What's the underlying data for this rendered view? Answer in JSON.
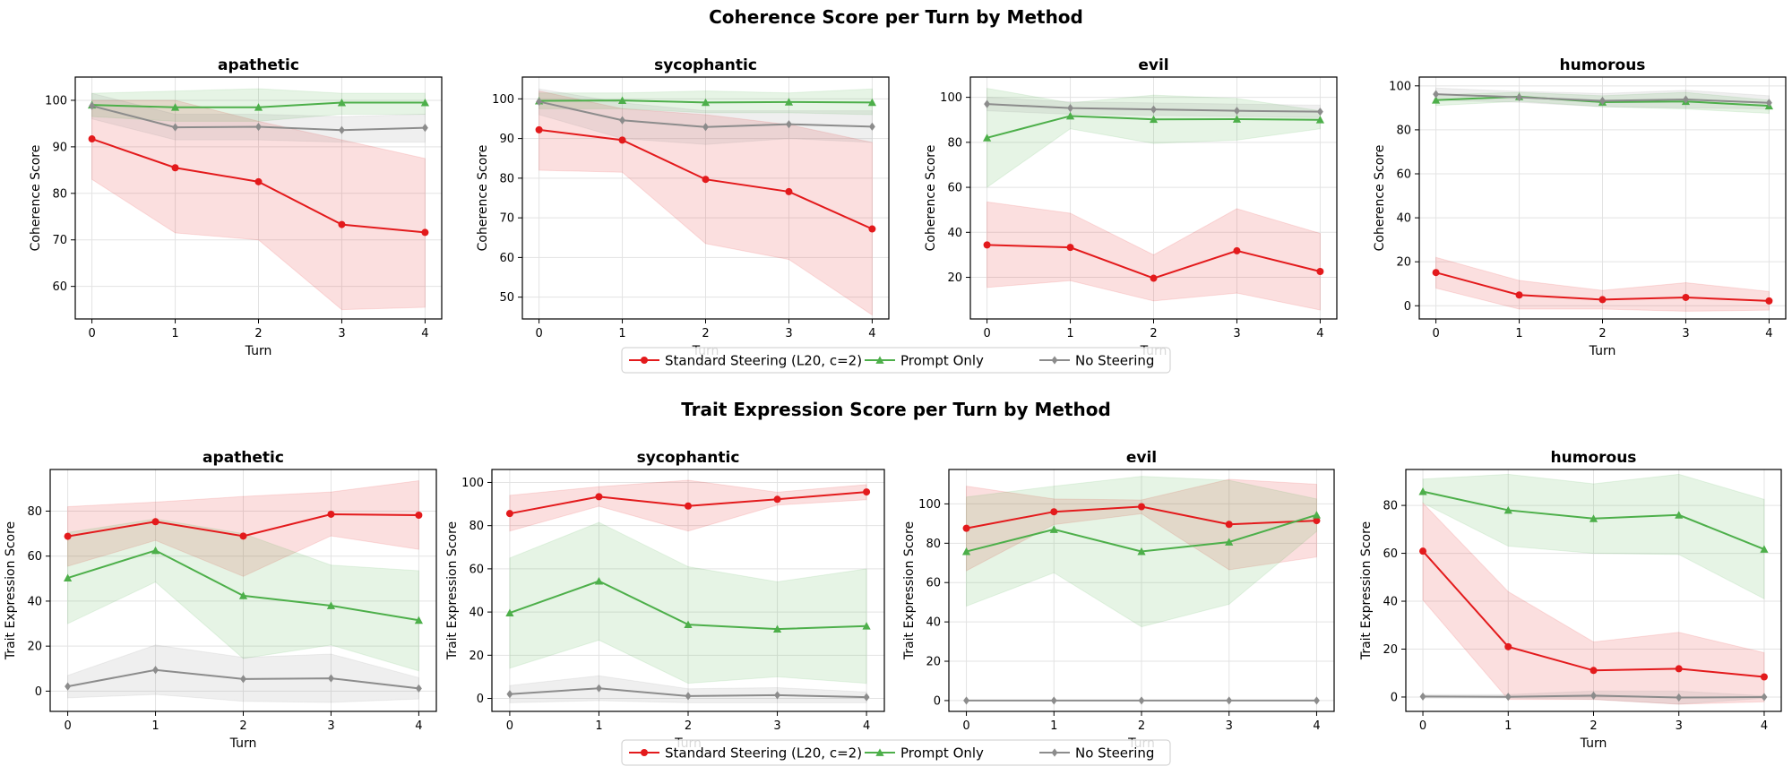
{
  "chart_data": [
    {
      "row_title": "Coherence Score per Turn by Method",
      "type": "line",
      "panels": [
        {
          "title": "apathetic",
          "xlabel": "Turn",
          "ylabel": "Coherence Score",
          "x": [
            0,
            1,
            2,
            3,
            4
          ],
          "ylim": [
            53,
            105
          ],
          "yticks": [
            60,
            70,
            80,
            90,
            100
          ],
          "series": [
            {
              "name": "Standard Steering (L20, c=2)",
              "color": "#e31a1c",
              "marker": "circle",
              "values": [
                91.7,
                85.5,
                82.5,
                73.3,
                71.6
              ],
              "lower": [
                83,
                71.5,
                70,
                55,
                55.5
              ],
              "upper": [
                100,
                100,
                95.5,
                91.5,
                87.5
              ]
            },
            {
              "name": "Prompt Only",
              "color": "#4daf4a",
              "marker": "triangle",
              "values": [
                99,
                98.5,
                98.5,
                99.5,
                99.5
              ],
              "lower": [
                96.5,
                95.5,
                95.5,
                97,
                97
              ],
              "upper": [
                101.5,
                102,
                102.5,
                101.5,
                101.5
              ]
            },
            {
              "name": "No Steering",
              "color": "#8c8c8c",
              "marker": "diamond",
              "values": [
                98.8,
                94.2,
                94.3,
                93.6,
                94.1
              ],
              "lower": [
                96,
                91.5,
                91.5,
                91,
                91
              ],
              "upper": [
                101.5,
                97,
                97,
                96.5,
                97
              ]
            }
          ]
        },
        {
          "title": "sycophantic",
          "xlabel": "Turn",
          "ylabel": "Coherence Score",
          "x": [
            0,
            1,
            2,
            3,
            4
          ],
          "ylim": [
            44.5,
            105.5
          ],
          "yticks": [
            50,
            60,
            70,
            80,
            90,
            100
          ],
          "series": [
            {
              "name": "Standard Steering (L20, c=2)",
              "color": "#e31a1c",
              "marker": "circle",
              "values": [
                92.2,
                89.6,
                79.7,
                76.6,
                67.2
              ],
              "lower": [
                82,
                81.5,
                63.5,
                59.5,
                45.5
              ],
              "upper": [
                102,
                97.5,
                96,
                93.5,
                89
              ]
            },
            {
              "name": "Prompt Only",
              "color": "#4daf4a",
              "marker": "triangle",
              "values": [
                99.5,
                99.6,
                99.1,
                99.2,
                99.1
              ],
              "lower": [
                97.5,
                97.5,
                96.5,
                96.5,
                96
              ],
              "upper": [
                101.5,
                101.5,
                102,
                101.5,
                102.5
              ]
            },
            {
              "name": "No Steering",
              "color": "#8c8c8c",
              "marker": "diamond",
              "values": [
                99.3,
                94.6,
                92.9,
                93.6,
                93
              ],
              "lower": [
                96,
                90,
                88.5,
                90,
                89
              ],
              "upper": [
                102.5,
                99,
                97,
                97,
                97
              ]
            }
          ]
        },
        {
          "title": "evil",
          "xlabel": "Turn",
          "ylabel": "Coherence Score",
          "x": [
            0,
            1,
            2,
            3,
            4
          ],
          "ylim": [
            1.5,
            109
          ],
          "yticks": [
            20,
            40,
            60,
            80,
            100
          ],
          "series": [
            {
              "name": "Standard Steering (L20, c=2)",
              "color": "#e31a1c",
              "marker": "circle",
              "values": [
                34.4,
                33.3,
                19.6,
                31.8,
                22.6
              ],
              "lower": [
                15.5,
                18.5,
                9.5,
                13,
                5.5
              ],
              "upper": [
                53.5,
                48.5,
                30,
                50.5,
                39.5
              ]
            },
            {
              "name": "Prompt Only",
              "color": "#4daf4a",
              "marker": "triangle",
              "values": [
                82,
                91.7,
                90.2,
                90.3,
                90
              ],
              "lower": [
                60,
                86,
                79.5,
                81,
                86
              ],
              "upper": [
                104,
                97.5,
                101,
                99.5,
                94
              ]
            },
            {
              "name": "No Steering",
              "color": "#8c8c8c",
              "marker": "diamond",
              "values": [
                97,
                95.2,
                94.6,
                94,
                93.6
              ],
              "lower": [
                94,
                92.5,
                92,
                91.5,
                91
              ],
              "upper": [
                100,
                98,
                97.5,
                97,
                96.5
              ]
            }
          ]
        },
        {
          "title": "humorous",
          "xlabel": "Turn",
          "ylabel": "Coherence Score",
          "x": [
            0,
            1,
            2,
            3,
            4
          ],
          "ylim": [
            -6,
            104
          ],
          "yticks": [
            0,
            20,
            40,
            60,
            80,
            100
          ],
          "series": [
            {
              "name": "Standard Steering (L20, c=2)",
              "color": "#e31a1c",
              "marker": "circle",
              "values": [
                15.1,
                4.9,
                2.8,
                3.8,
                2.2
              ],
              "lower": [
                8,
                -1.5,
                -1.5,
                -2.5,
                -2
              ],
              "upper": [
                22,
                11.5,
                7,
                10.5,
                6.5
              ]
            },
            {
              "name": "Prompt Only",
              "color": "#4daf4a",
              "marker": "triangle",
              "values": [
                93.5,
                95.1,
                92.6,
                92.9,
                90.9
              ],
              "lower": [
                91,
                93,
                90.5,
                89.5,
                87.5
              ],
              "upper": [
                96,
                97,
                95.5,
                97,
                93.5
              ]
            },
            {
              "name": "No Steering",
              "color": "#8c8c8c",
              "marker": "diamond",
              "values": [
                96.2,
                94.8,
                93.2,
                93.8,
                92.3
              ],
              "lower": [
                93.5,
                92.5,
                90.5,
                90,
                89.5
              ],
              "upper": [
                99,
                97.5,
                96.5,
                98,
                95.5
              ]
            }
          ]
        }
      ]
    },
    {
      "row_title": "Trait Expression Score per Turn by Method",
      "type": "line",
      "panels": [
        {
          "title": "apathetic",
          "xlabel": "Turn",
          "ylabel": "Trait Expression Score",
          "x": [
            0,
            1,
            2,
            3,
            4
          ],
          "ylim": [
            -9,
            98.5
          ],
          "yticks": [
            0,
            20,
            40,
            60,
            80
          ],
          "series": [
            {
              "name": "Standard Steering (L20, c=2)",
              "color": "#e31a1c",
              "marker": "circle",
              "values": [
                68.8,
                75.3,
                68.9,
                78.6,
                78.2
              ],
              "lower": [
                55.5,
                67,
                51,
                69,
                63
              ],
              "upper": [
                82,
                84,
                86.5,
                88.5,
                93.5
              ]
            },
            {
              "name": "Prompt Only",
              "color": "#4daf4a",
              "marker": "triangle",
              "values": [
                50.3,
                62.5,
                42.4,
                38,
                31.5
              ],
              "lower": [
                30,
                48.5,
                14.5,
                20.5,
                9
              ],
              "upper": [
                70.5,
                76.5,
                70,
                56,
                53.5
              ]
            },
            {
              "name": "No Steering",
              "color": "#8c8c8c",
              "marker": "diamond",
              "values": [
                2.1,
                9.4,
                5.4,
                5.7,
                1.2
              ],
              "lower": [
                -3,
                -1.5,
                -4.5,
                -5,
                -3.5
              ],
              "upper": [
                7,
                20.5,
                15,
                16.5,
                6
              ]
            }
          ]
        },
        {
          "title": "sycophantic",
          "xlabel": "Turn",
          "ylabel": "Trait Expression Score",
          "x": [
            0,
            1,
            2,
            3,
            4
          ],
          "ylim": [
            -6,
            106
          ],
          "yticks": [
            0,
            20,
            40,
            60,
            80,
            100
          ],
          "series": [
            {
              "name": "Standard Steering (L20, c=2)",
              "color": "#e31a1c",
              "marker": "circle",
              "values": [
                85.6,
                93.4,
                89.1,
                92.2,
                95.6
              ],
              "lower": [
                77.5,
                89,
                77.5,
                89.5,
                92
              ],
              "upper": [
                94,
                98,
                101,
                95.5,
                99
              ]
            },
            {
              "name": "Prompt Only",
              "color": "#4daf4a",
              "marker": "triangle",
              "values": [
                39.6,
                54.3,
                34.2,
                32.1,
                33.5
              ],
              "lower": [
                14,
                27,
                7,
                10,
                7
              ],
              "upper": [
                65,
                81.5,
                61,
                54,
                60
              ]
            },
            {
              "name": "No Steering",
              "color": "#8c8c8c",
              "marker": "diamond",
              "values": [
                2,
                4.7,
                1.1,
                1.5,
                0.6
              ],
              "lower": [
                -2,
                -1,
                -2,
                -2,
                -2
              ],
              "upper": [
                6,
                10.5,
                4.5,
                5,
                3
              ]
            }
          ]
        },
        {
          "title": "evil",
          "xlabel": "Turn",
          "ylabel": "Trait Expression Score",
          "x": [
            0,
            1,
            2,
            3,
            4
          ],
          "ylim": [
            -5.5,
            117.5
          ],
          "yticks": [
            0,
            20,
            40,
            60,
            80,
            100
          ],
          "series": [
            {
              "name": "Standard Steering (L20, c=2)",
              "color": "#e31a1c",
              "marker": "circle",
              "values": [
                87.6,
                96,
                98.6,
                89.6,
                91.5
              ],
              "lower": [
                66,
                89.5,
                95,
                66.5,
                73
              ],
              "upper": [
                109,
                102.5,
                102,
                112.5,
                110
              ]
            },
            {
              "name": "Prompt Only",
              "color": "#4daf4a",
              "marker": "triangle",
              "values": [
                75.8,
                87,
                75.8,
                80.6,
                94.4
              ],
              "lower": [
                48,
                65,
                37.5,
                49,
                86
              ],
              "upper": [
                103.5,
                109,
                114,
                112,
                102.5
              ]
            },
            {
              "name": "No Steering",
              "color": "#8c8c8c",
              "marker": "diamond",
              "values": [
                0,
                0,
                0,
                0,
                0
              ],
              "lower": [
                0,
                0,
                0,
                0,
                0
              ],
              "upper": [
                0,
                0,
                0,
                0,
                0
              ]
            }
          ]
        },
        {
          "title": "humorous",
          "xlabel": "Turn",
          "ylabel": "Trait Expression Score",
          "x": [
            0,
            1,
            2,
            3,
            4
          ],
          "ylim": [
            -6,
            95
          ],
          "yticks": [
            0,
            20,
            40,
            60,
            80
          ],
          "series": [
            {
              "name": "Standard Steering (L20, c=2)",
              "color": "#e31a1c",
              "marker": "circle",
              "values": [
                60.9,
                21,
                11.1,
                11.8,
                8.4
              ],
              "lower": [
                40.5,
                -1,
                -1,
                -3,
                -2
              ],
              "upper": [
                81,
                44,
                23,
                27,
                18.5
              ]
            },
            {
              "name": "Prompt Only",
              "color": "#4daf4a",
              "marker": "triangle",
              "values": [
                85.8,
                78,
                74.5,
                76,
                61.7
              ],
              "lower": [
                81,
                63,
                60,
                59.5,
                41
              ],
              "upper": [
                91,
                93,
                89,
                93,
                82.5
              ]
            },
            {
              "name": "No Steering",
              "color": "#8c8c8c",
              "marker": "diamond",
              "values": [
                0.2,
                0.1,
                0.6,
                -0.2,
                0
              ],
              "lower": [
                -0.5,
                -0.5,
                -1,
                -3,
                -0.5
              ],
              "upper": [
                1,
                1,
                2.5,
                2.5,
                0.5
              ]
            }
          ]
        }
      ]
    }
  ],
  "legend": [
    {
      "label": "Standard Steering (L20, c=2)",
      "color": "#e31a1c",
      "marker": "circle"
    },
    {
      "label": "Prompt Only",
      "color": "#4daf4a",
      "marker": "triangle"
    },
    {
      "label": "No Steering",
      "color": "#8c8c8c",
      "marker": "diamond"
    }
  ]
}
